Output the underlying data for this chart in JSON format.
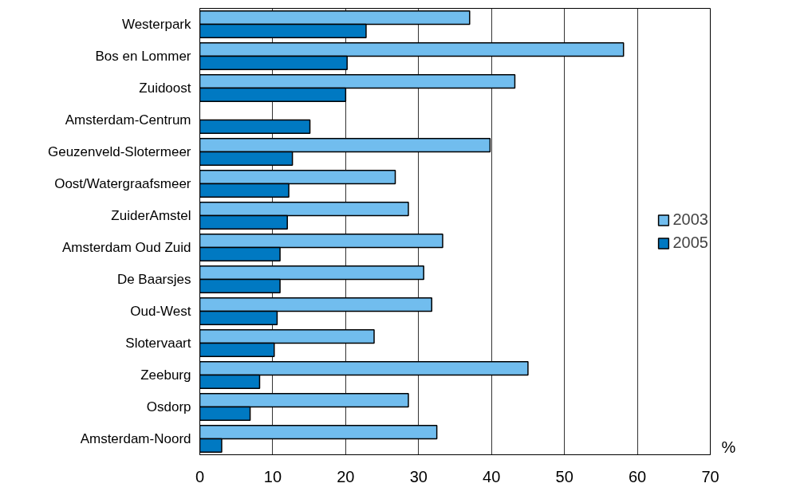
{
  "chart_data": {
    "type": "bar",
    "orientation": "horizontal",
    "categories": [
      "Westerpark",
      "Bos en Lommer",
      "Zuidoost",
      "Amsterdam-Centrum",
      "Geuzenveld-Slotermeer",
      "Oost/Watergraafsmeer",
      "ZuiderAmstel",
      "Amsterdam Oud Zuid",
      "De Baarsjes",
      "Oud-West",
      "Slotervaart",
      "Zeeburg",
      "Osdorp",
      "Amsterdam-Noord"
    ],
    "series": [
      {
        "name": "2003",
        "color": "#71bdee",
        "values": [
          37.0,
          58.1,
          43.2,
          null,
          39.8,
          26.8,
          28.6,
          33.3,
          30.7,
          31.8,
          23.9,
          45.0,
          28.6,
          32.5
        ]
      },
      {
        "name": "2005",
        "color": "#0079c2",
        "values": [
          22.8,
          20.2,
          20.0,
          15.1,
          12.7,
          12.2,
          12.0,
          11.0,
          11.0,
          10.6,
          10.2,
          8.2,
          6.9,
          3.0
        ]
      }
    ],
    "xlabel": "%",
    "xlim": [
      0,
      70
    ],
    "xticks": [
      0,
      10,
      20,
      30,
      40,
      50,
      60,
      70
    ],
    "grid": "x",
    "legend": "right"
  }
}
